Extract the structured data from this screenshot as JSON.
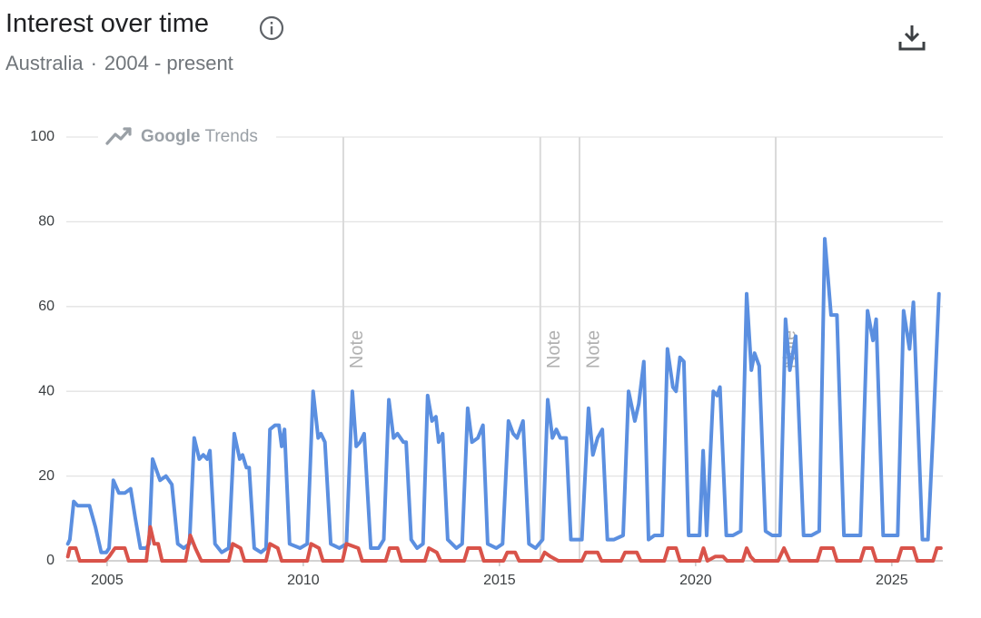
{
  "header": {
    "title": "Interest over time",
    "region": "Australia",
    "period": "2004 - present"
  },
  "chart_data": {
    "type": "line",
    "watermark": [
      "Google",
      "Trends"
    ],
    "xlim": [
      2003.96,
      2026.3
    ],
    "xticks": [
      2005,
      2010,
      2015,
      2020,
      2025
    ],
    "ylim": [
      0,
      100
    ],
    "yticks": [
      0,
      20,
      40,
      60,
      80,
      100
    ],
    "grid": true,
    "annotations": [
      {
        "x": 2011.02,
        "label": "Note"
      },
      {
        "x": 2016.04,
        "label": "Note"
      },
      {
        "x": 2017.04,
        "label": "Note"
      },
      {
        "x": 2022.04,
        "label": "Note"
      }
    ],
    "series": [
      {
        "color": "#5b8fe0",
        "x": [
          2004.0,
          2004.05,
          2004.15,
          2004.25,
          2004.55,
          2004.7,
          2004.85,
          2004.98,
          2005.05,
          2005.16,
          2005.3,
          2005.45,
          2005.6,
          2005.72,
          2005.85,
          2006.0,
          2006.07,
          2006.16,
          2006.35,
          2006.5,
          2006.65,
          2006.8,
          2006.95,
          2007.1,
          2007.22,
          2007.35,
          2007.45,
          2007.55,
          2007.62,
          2007.75,
          2007.92,
          2008.1,
          2008.24,
          2008.38,
          2008.45,
          2008.55,
          2008.62,
          2008.75,
          2008.92,
          2009.05,
          2009.15,
          2009.28,
          2009.38,
          2009.45,
          2009.52,
          2009.65,
          2009.92,
          2010.1,
          2010.25,
          2010.38,
          2010.45,
          2010.55,
          2010.7,
          2010.92,
          2011.1,
          2011.25,
          2011.35,
          2011.45,
          2011.55,
          2011.72,
          2011.92,
          2012.05,
          2012.18,
          2012.3,
          2012.4,
          2012.55,
          2012.62,
          2012.75,
          2012.9,
          2013.05,
          2013.17,
          2013.28,
          2013.38,
          2013.45,
          2013.55,
          2013.68,
          2013.9,
          2014.05,
          2014.19,
          2014.3,
          2014.45,
          2014.58,
          2014.7,
          2014.92,
          2015.08,
          2015.23,
          2015.35,
          2015.45,
          2015.6,
          2015.75,
          2015.92,
          2016.1,
          2016.23,
          2016.35,
          2016.45,
          2016.55,
          2016.7,
          2016.82,
          2016.95,
          2017.1,
          2017.27,
          2017.38,
          2017.5,
          2017.62,
          2017.75,
          2017.92,
          2018.15,
          2018.29,
          2018.45,
          2018.55,
          2018.68,
          2018.8,
          2018.95,
          2019.15,
          2019.28,
          2019.42,
          2019.5,
          2019.6,
          2019.7,
          2019.82,
          2019.95,
          2020.1,
          2020.19,
          2020.28,
          2020.45,
          2020.55,
          2020.62,
          2020.78,
          2020.95,
          2021.15,
          2021.3,
          2021.42,
          2021.5,
          2021.62,
          2021.78,
          2021.95,
          2022.15,
          2022.29,
          2022.4,
          2022.55,
          2022.75,
          2022.95,
          2023.15,
          2023.29,
          2023.45,
          2023.6,
          2023.78,
          2023.95,
          2024.2,
          2024.38,
          2024.52,
          2024.6,
          2024.78,
          2024.95,
          2025.15,
          2025.3,
          2025.45,
          2025.55,
          2025.78,
          2025.92,
          2026.05,
          2026.2
        ],
        "values": [
          4,
          5,
          14,
          13,
          13,
          8,
          2,
          2,
          3,
          19,
          16,
          16,
          17,
          10,
          3,
          3,
          4,
          24,
          19,
          20,
          18,
          4,
          3,
          4,
          29,
          24,
          25,
          24,
          26,
          4,
          2,
          3,
          30,
          24,
          25,
          22,
          22,
          3,
          2,
          3,
          31,
          32,
          32,
          27,
          31,
          4,
          3,
          4,
          40,
          29,
          30,
          28,
          4,
          3,
          4,
          40,
          27,
          28,
          30,
          3,
          3,
          5,
          38,
          29,
          30,
          28,
          28,
          5,
          3,
          4,
          39,
          33,
          34,
          28,
          30,
          5,
          3,
          4,
          36,
          28,
          29,
          32,
          4,
          3,
          4,
          33,
          30,
          29,
          33,
          4,
          3,
          5,
          38,
          29,
          31,
          29,
          29,
          5,
          5,
          5,
          36,
          25,
          29,
          31,
          5,
          5,
          6,
          40,
          33,
          37,
          47,
          5,
          6,
          6,
          50,
          41,
          40,
          48,
          47,
          6,
          6,
          6,
          26,
          6,
          40,
          39,
          41,
          6,
          6,
          7,
          63,
          45,
          49,
          46,
          7,
          6,
          6,
          57,
          45,
          53,
          6,
          6,
          7,
          76,
          58,
          58,
          6,
          6,
          6,
          59,
          52,
          57,
          6,
          6,
          6,
          59,
          50,
          61,
          5,
          5,
          30,
          63
        ]
      },
      {
        "color": "#d9534a",
        "x": [
          2004.0,
          2004.05,
          2004.2,
          2004.3,
          2004.95,
          2005.05,
          2005.2,
          2005.45,
          2005.55,
          2006.0,
          2006.1,
          2006.2,
          2006.3,
          2006.4,
          2007.0,
          2007.12,
          2007.25,
          2007.4,
          2008.1,
          2008.2,
          2008.4,
          2008.5,
          2009.05,
          2009.15,
          2009.35,
          2009.45,
          2010.1,
          2010.2,
          2010.4,
          2010.5,
          2011.0,
          2011.1,
          2011.4,
          2011.5,
          2012.1,
          2012.2,
          2012.4,
          2012.5,
          2013.1,
          2013.2,
          2013.4,
          2013.5,
          2014.1,
          2014.2,
          2014.5,
          2014.6,
          2015.1,
          2015.2,
          2015.4,
          2015.5,
          2016.05,
          2016.15,
          2016.3,
          2016.5,
          2017.1,
          2017.2,
          2017.5,
          2017.6,
          2018.1,
          2018.2,
          2018.5,
          2018.6,
          2019.2,
          2019.3,
          2019.5,
          2019.6,
          2020.1,
          2020.2,
          2020.3,
          2020.5,
          2020.7,
          2020.8,
          2021.2,
          2021.3,
          2021.4,
          2021.5,
          2022.1,
          2022.25,
          2022.4,
          2023.1,
          2023.2,
          2023.5,
          2023.6,
          2024.2,
          2024.3,
          2024.5,
          2024.6,
          2025.15,
          2025.25,
          2025.55,
          2025.65,
          2026.05,
          2026.15,
          2026.25
        ],
        "values": [
          1,
          3,
          3,
          0,
          0,
          1,
          3,
          3,
          0,
          0,
          8,
          4,
          4,
          0,
          0,
          6,
          3,
          0,
          0,
          4,
          3,
          0,
          0,
          4,
          3,
          0,
          0,
          4,
          3,
          0,
          0,
          4,
          3,
          0,
          0,
          3,
          3,
          0,
          0,
          3,
          2,
          0,
          0,
          3,
          3,
          0,
          0,
          2,
          2,
          0,
          0,
          2,
          1,
          0,
          0,
          2,
          2,
          0,
          0,
          2,
          2,
          0,
          0,
          3,
          3,
          0,
          0,
          3,
          0,
          1,
          1,
          0,
          0,
          3,
          1,
          0,
          0,
          3,
          0,
          0,
          3,
          3,
          0,
          0,
          3,
          3,
          0,
          0,
          3,
          3,
          0,
          0,
          3,
          3
        ]
      }
    ]
  }
}
